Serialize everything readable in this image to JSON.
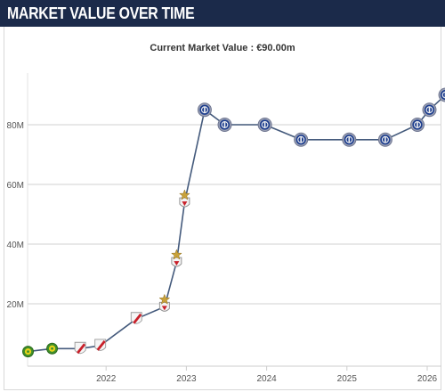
{
  "header": {
    "title": "MARKET VALUE OVER TIME"
  },
  "chart_data": {
    "type": "line",
    "subtitle": "Current Market Value : €90.00m",
    "y_ticks": [
      {
        "value": 20,
        "label": "20M"
      },
      {
        "value": 40,
        "label": "40M"
      },
      {
        "value": 60,
        "label": "60M"
      },
      {
        "value": 80,
        "label": "80M"
      }
    ],
    "x_ticks": [
      {
        "value": 2022,
        "label": "2022"
      },
      {
        "value": 2023,
        "label": "2023"
      },
      {
        "value": 2024,
        "label": "2024"
      },
      {
        "value": 2025,
        "label": "2025"
      },
      {
        "value": 2026,
        "label": "2026"
      }
    ],
    "xlim": [
      2021.0,
      2026.25
    ],
    "ylim": [
      0,
      98
    ],
    "grid": "horizontal",
    "colors": {
      "line": "#445a7c",
      "grid": "#d9d9d9",
      "axis": "#555555"
    },
    "series": [
      {
        "points": [
          {
            "x": 2021.05,
            "y": 4,
            "club": "green-yellow-crest-icon"
          },
          {
            "x": 2021.35,
            "y": 5,
            "club": "green-yellow-crest-icon"
          },
          {
            "x": 2021.7,
            "y": 5,
            "club": "red-white-crest-icon"
          },
          {
            "x": 2021.95,
            "y": 6,
            "club": "red-white-crest-icon"
          },
          {
            "x": 2022.4,
            "y": 15,
            "club": "red-white-crest-icon"
          },
          {
            "x": 2022.75,
            "y": 19,
            "club": "eagle-crest-icon"
          },
          {
            "x": 2022.9,
            "y": 34,
            "club": "eagle-crest-icon"
          },
          {
            "x": 2023.0,
            "y": 54,
            "club": "eagle-crest-icon"
          },
          {
            "x": 2023.25,
            "y": 85,
            "club": "lion-crest-icon"
          },
          {
            "x": 2023.5,
            "y": 80,
            "club": "lion-crest-icon"
          },
          {
            "x": 2024.0,
            "y": 80,
            "club": "lion-crest-icon"
          },
          {
            "x": 2024.45,
            "y": 75,
            "club": "lion-crest-icon"
          },
          {
            "x": 2025.05,
            "y": 75,
            "club": "lion-crest-icon"
          },
          {
            "x": 2025.5,
            "y": 75,
            "club": "lion-crest-icon"
          },
          {
            "x": 2025.9,
            "y": 80,
            "club": "lion-crest-icon"
          },
          {
            "x": 2026.05,
            "y": 85,
            "club": "lion-crest-icon"
          },
          {
            "x": 2026.25,
            "y": 90,
            "club": "lion-crest-icon"
          }
        ]
      }
    ]
  }
}
